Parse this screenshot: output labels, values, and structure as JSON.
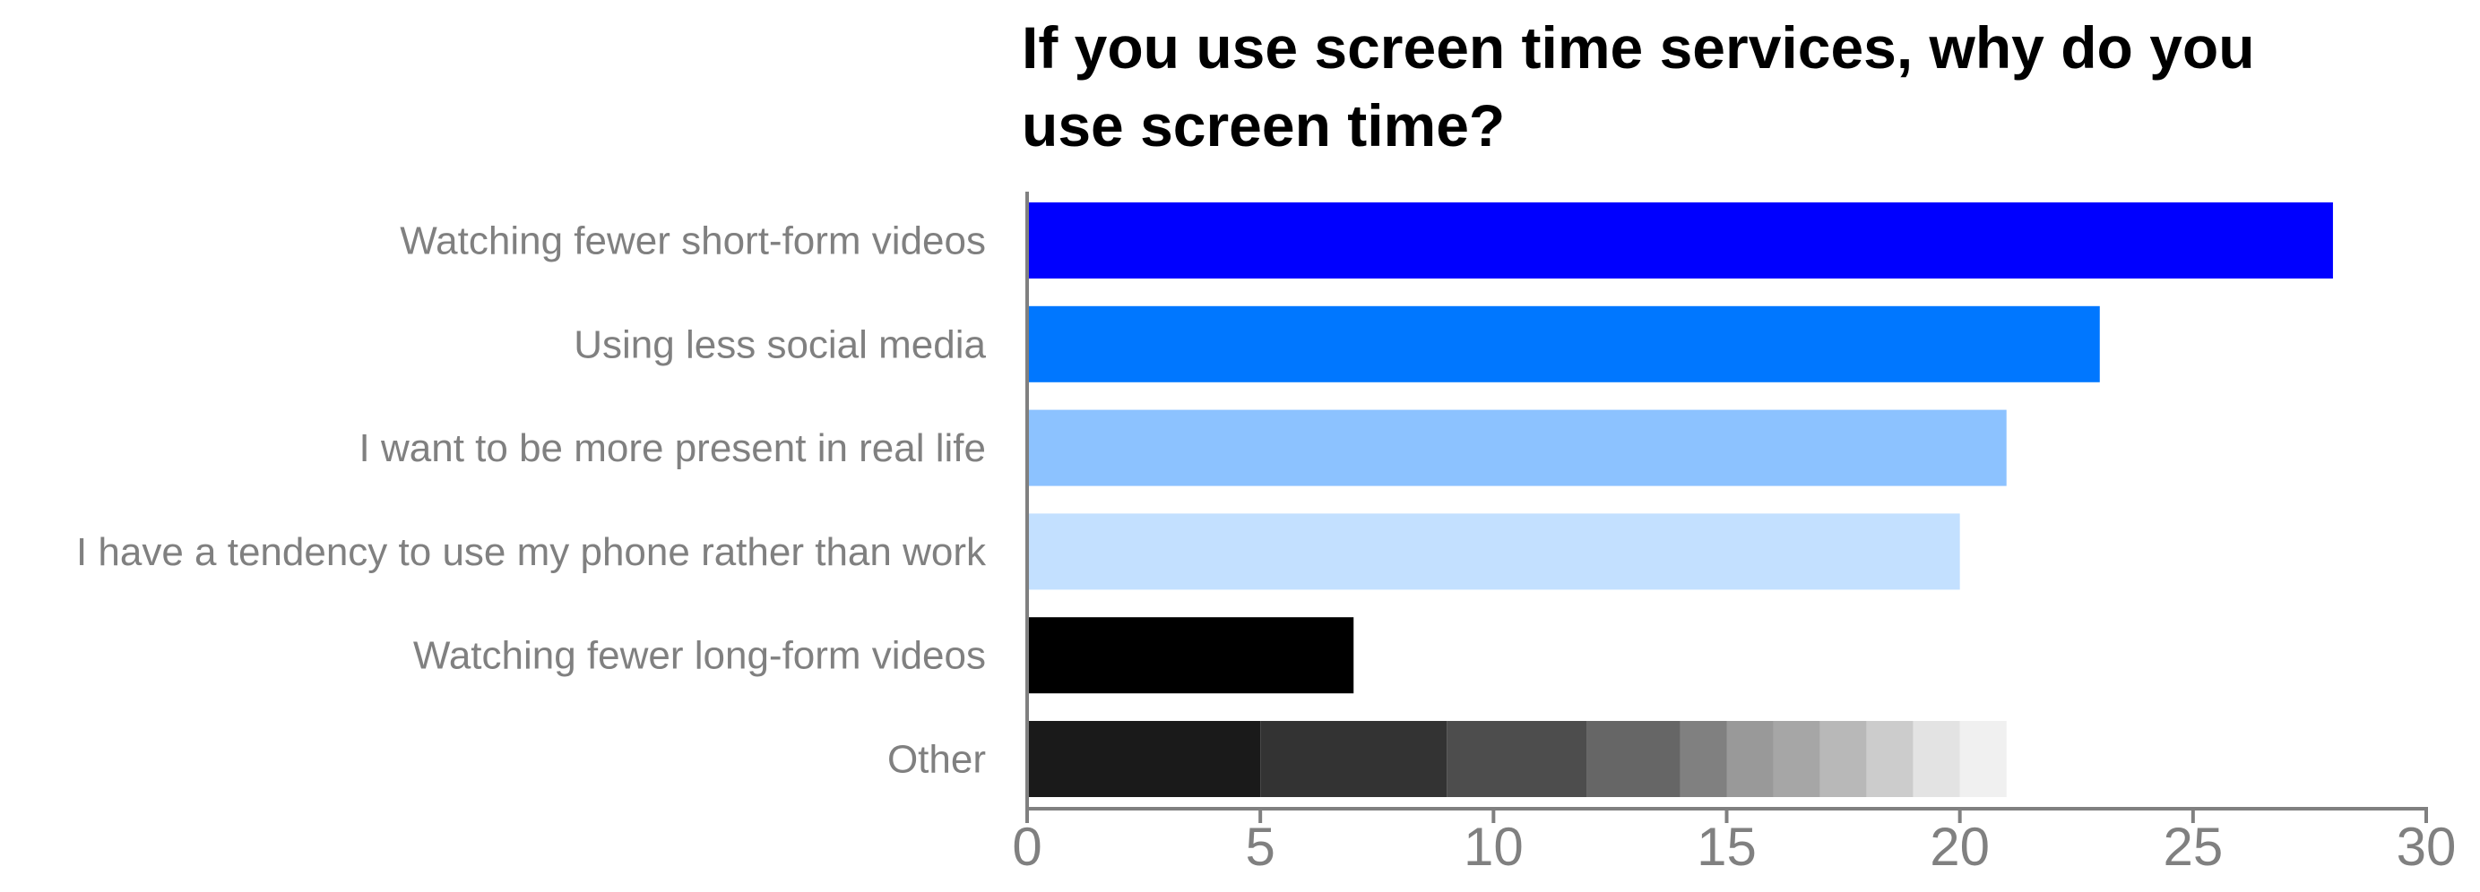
{
  "chart_data": {
    "type": "bar",
    "orientation": "horizontal",
    "stacked_last_category": true,
    "title": "If you use screen time services, why do you use screen time?",
    "title_lines": [
      "If you use screen time services, why do you",
      "use screen time?"
    ],
    "xlabel": "",
    "ylabel": "",
    "xlim": [
      0,
      30
    ],
    "x_ticks": [
      0,
      5,
      10,
      15,
      20,
      25,
      30
    ],
    "grid": false,
    "categories": [
      "Watching fewer short-form videos",
      "Using less social media",
      "I want to be more present in real life",
      "I have a tendency to use my phone rather than work",
      "Watching fewer long-form videos",
      "Other"
    ],
    "values": [
      28,
      23,
      21,
      20,
      7,
      21
    ],
    "bar_colors": [
      "#0000ff",
      "#0077ff",
      "#8cc2ff",
      "#c3e0ff",
      "#000000"
    ],
    "other_segments": [
      {
        "value": 5,
        "color": "#1a1a1a"
      },
      {
        "value": 4,
        "color": "#333333"
      },
      {
        "value": 3,
        "color": "#4d4d4d"
      },
      {
        "value": 2,
        "color": "#666666"
      },
      {
        "value": 1,
        "color": "#808080"
      },
      {
        "value": 1,
        "color": "#999999"
      },
      {
        "value": 1,
        "color": "#a6a6a6"
      },
      {
        "value": 1,
        "color": "#b8b8b8"
      },
      {
        "value": 1,
        "color": "#cccccc"
      },
      {
        "value": 1,
        "color": "#e3e3e3"
      },
      {
        "value": 1,
        "color": "#f0f0f0"
      }
    ],
    "axis_color": "#808080"
  }
}
